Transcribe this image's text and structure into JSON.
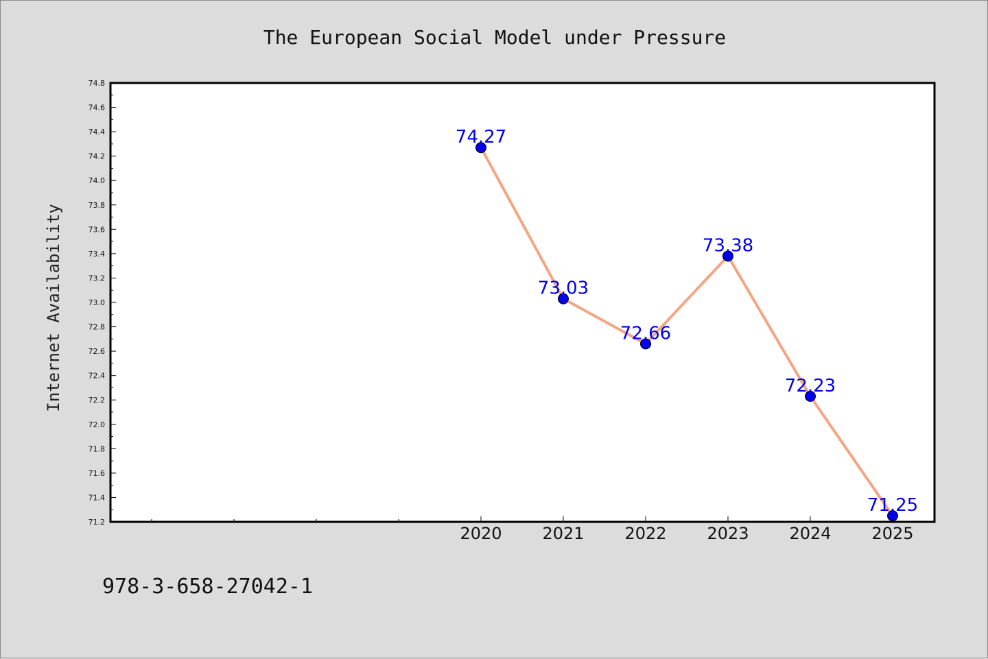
{
  "chart_data": {
    "type": "line",
    "title": "The European Social Model under Pressure",
    "xlabel": "",
    "ylabel": "Internet Availability",
    "categories": [
      "2020",
      "2021",
      "2022",
      "2023",
      "2024",
      "2025"
    ],
    "values": [
      74.27,
      73.03,
      72.66,
      73.38,
      72.23,
      71.25
    ],
    "data_labels": [
      "74.27",
      "73.03",
      "72.66",
      "73.38",
      "72.23",
      "71.25"
    ],
    "ylim": [
      71.2,
      74.8
    ],
    "yticks": [
      "71.2",
      "71.4",
      "71.6",
      "71.8",
      "72.0",
      "72.2",
      "72.4",
      "72.6",
      "72.8",
      "73.0",
      "73.2",
      "73.4",
      "73.6",
      "73.8",
      "74.0",
      "74.2",
      "74.4",
      "74.6",
      "74.8"
    ],
    "grid": false,
    "legend": "none",
    "colors": {
      "line": "#f4a582",
      "marker": "#0000ee",
      "label": "#0000ee",
      "plot_bg": "#ffffff",
      "page_bg": "#dcdcdc"
    }
  },
  "footnote": "978-3-658-27042-1"
}
